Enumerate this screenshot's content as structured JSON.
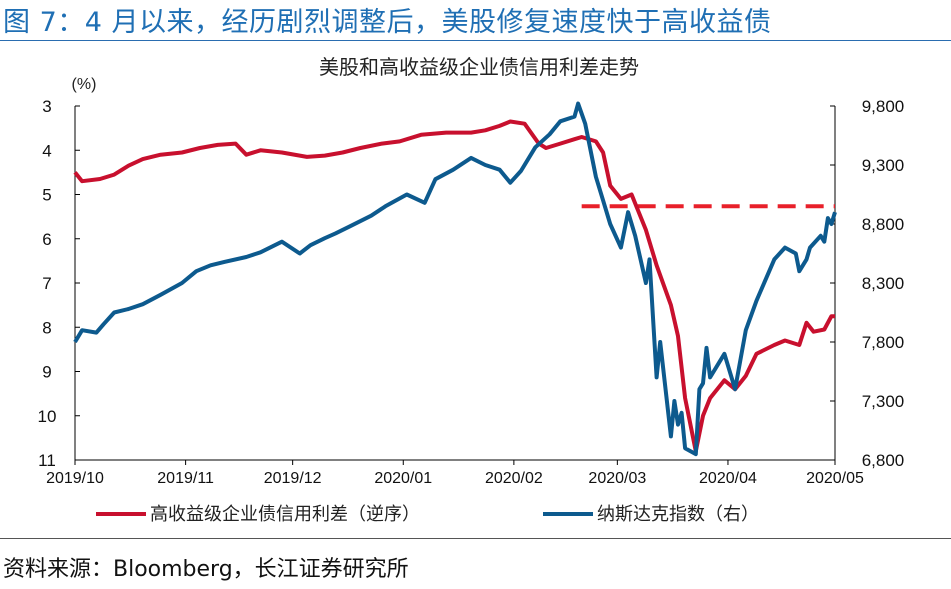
{
  "figure": {
    "title": "图 7：4 月以来，经历剧烈调整后，美股修复速度快于高收益债",
    "source": "资料来源：Bloomberg，长江证券研究所"
  },
  "colors": {
    "title_blue": "#1f6fb4",
    "spread_red": "#c8102e",
    "nasdaq_blue": "#0d5a8e",
    "dashed_red": "#e8202a"
  },
  "chart_data": {
    "type": "line",
    "title": "美股和高收益级企业债信用利差走势",
    "left_axis": {
      "unit_label": "(%)",
      "range": [
        3,
        11
      ],
      "inverted": true,
      "ticks": [
        3,
        4,
        5,
        6,
        7,
        8,
        9,
        10,
        11
      ]
    },
    "right_axis": {
      "range": [
        6800,
        9800
      ],
      "ticks": [
        6800,
        7300,
        7800,
        8300,
        8800,
        9300,
        9800
      ],
      "tick_labels": [
        "6,800",
        "7,300",
        "7,800",
        "8,300",
        "8,800",
        "9,300",
        "9,800"
      ]
    },
    "x_axis": {
      "start": "2019-10-01",
      "end": "2020-05-01",
      "ticks": [
        "2019-10-01",
        "2019-11-01",
        "2019-12-01",
        "2020-01-01",
        "2020-02-01",
        "2020-03-01",
        "2020-04-01",
        "2020-05-01"
      ],
      "tick_labels": [
        "2019/10",
        "2019/11",
        "2019/12",
        "2020/01",
        "2020/02",
        "2020/03",
        "2020/04",
        "2020/05"
      ]
    },
    "grid": false,
    "legend_position": "bottom",
    "series": [
      {
        "name": "高收益级企业债信用利差（逆序）",
        "axis": "left",
        "points": [
          [
            "2019-10-01",
            4.5
          ],
          [
            "2019-10-03",
            4.7
          ],
          [
            "2019-10-08",
            4.65
          ],
          [
            "2019-10-12",
            4.55
          ],
          [
            "2019-10-16",
            4.35
          ],
          [
            "2019-10-20",
            4.2
          ],
          [
            "2019-10-25",
            4.1
          ],
          [
            "2019-10-31",
            4.05
          ],
          [
            "2019-11-05",
            3.95
          ],
          [
            "2019-11-10",
            3.88
          ],
          [
            "2019-11-15",
            3.85
          ],
          [
            "2019-11-18",
            4.1
          ],
          [
            "2019-11-22",
            4.0
          ],
          [
            "2019-11-28",
            4.05
          ],
          [
            "2019-12-05",
            4.15
          ],
          [
            "2019-12-10",
            4.12
          ],
          [
            "2019-12-15",
            4.05
          ],
          [
            "2019-12-20",
            3.95
          ],
          [
            "2019-12-26",
            3.85
          ],
          [
            "2019-12-31",
            3.8
          ],
          [
            "2020-01-06",
            3.65
          ],
          [
            "2020-01-13",
            3.6
          ],
          [
            "2020-01-20",
            3.6
          ],
          [
            "2020-01-24",
            3.55
          ],
          [
            "2020-01-28",
            3.45
          ],
          [
            "2020-01-31",
            3.35
          ],
          [
            "2020-02-04",
            3.4
          ],
          [
            "2020-02-08",
            3.85
          ],
          [
            "2020-02-10",
            3.95
          ],
          [
            "2020-02-14",
            3.85
          ],
          [
            "2020-02-18",
            3.75
          ],
          [
            "2020-02-20",
            3.7
          ],
          [
            "2020-02-24",
            3.8
          ],
          [
            "2020-02-26",
            4.05
          ],
          [
            "2020-02-28",
            4.8
          ],
          [
            "2020-03-02",
            5.1
          ],
          [
            "2020-03-05",
            5.0
          ],
          [
            "2020-03-09",
            5.8
          ],
          [
            "2020-03-12",
            6.6
          ],
          [
            "2020-03-16",
            7.5
          ],
          [
            "2020-03-18",
            8.2
          ],
          [
            "2020-03-20",
            9.6
          ],
          [
            "2020-03-23",
            10.8
          ],
          [
            "2020-03-25",
            10.0
          ],
          [
            "2020-03-27",
            9.6
          ],
          [
            "2020-03-31",
            9.2
          ],
          [
            "2020-04-03",
            9.4
          ],
          [
            "2020-04-06",
            9.1
          ],
          [
            "2020-04-09",
            8.6
          ],
          [
            "2020-04-14",
            8.4
          ],
          [
            "2020-04-17",
            8.3
          ],
          [
            "2020-04-21",
            8.4
          ],
          [
            "2020-04-23",
            7.9
          ],
          [
            "2020-04-25",
            8.1
          ],
          [
            "2020-04-28",
            8.05
          ],
          [
            "2020-04-30",
            7.75
          ],
          [
            "2020-05-01",
            7.75
          ]
        ]
      },
      {
        "name": "纳斯达克指数（右）",
        "axis": "right",
        "points": [
          [
            "2019-10-01",
            7800
          ],
          [
            "2019-10-03",
            7900
          ],
          [
            "2019-10-07",
            7880
          ],
          [
            "2019-10-09",
            7950
          ],
          [
            "2019-10-12",
            8050
          ],
          [
            "2019-10-16",
            8080
          ],
          [
            "2019-10-20",
            8120
          ],
          [
            "2019-10-25",
            8200
          ],
          [
            "2019-10-31",
            8300
          ],
          [
            "2019-11-04",
            8400
          ],
          [
            "2019-11-08",
            8450
          ],
          [
            "2019-11-12",
            8480
          ],
          [
            "2019-11-18",
            8520
          ],
          [
            "2019-11-22",
            8560
          ],
          [
            "2019-11-28",
            8650
          ],
          [
            "2019-12-03",
            8550
          ],
          [
            "2019-12-06",
            8620
          ],
          [
            "2019-12-10",
            8680
          ],
          [
            "2019-12-13",
            8720
          ],
          [
            "2019-12-17",
            8780
          ],
          [
            "2019-12-23",
            8870
          ],
          [
            "2019-12-27",
            8950
          ],
          [
            "2020-01-02",
            9050
          ],
          [
            "2020-01-07",
            8980
          ],
          [
            "2020-01-10",
            9180
          ],
          [
            "2020-01-15",
            9260
          ],
          [
            "2020-01-20",
            9360
          ],
          [
            "2020-01-24",
            9300
          ],
          [
            "2020-01-28",
            9260
          ],
          [
            "2020-01-31",
            9150
          ],
          [
            "2020-02-03",
            9250
          ],
          [
            "2020-02-07",
            9450
          ],
          [
            "2020-02-11",
            9560
          ],
          [
            "2020-02-14",
            9670
          ],
          [
            "2020-02-18",
            9710
          ],
          [
            "2020-02-19",
            9820
          ],
          [
            "2020-02-21",
            9650
          ],
          [
            "2020-02-24",
            9200
          ],
          [
            "2020-02-26",
            9000
          ],
          [
            "2020-02-28",
            8800
          ],
          [
            "2020-03-02",
            8600
          ],
          [
            "2020-03-04",
            8900
          ],
          [
            "2020-03-06",
            8700
          ],
          [
            "2020-03-09",
            8300
          ],
          [
            "2020-03-10",
            8500
          ],
          [
            "2020-03-12",
            7500
          ],
          [
            "2020-03-13",
            7800
          ],
          [
            "2020-03-16",
            7000
          ],
          [
            "2020-03-17",
            7300
          ],
          [
            "2020-03-18",
            7100
          ],
          [
            "2020-03-19",
            7200
          ],
          [
            "2020-03-20",
            6900
          ],
          [
            "2020-03-23",
            6850
          ],
          [
            "2020-03-24",
            7400
          ],
          [
            "2020-03-25",
            7450
          ],
          [
            "2020-03-26",
            7750
          ],
          [
            "2020-03-27",
            7500
          ],
          [
            "2020-03-31",
            7700
          ],
          [
            "2020-04-03",
            7400
          ],
          [
            "2020-04-06",
            7900
          ],
          [
            "2020-04-09",
            8150
          ],
          [
            "2020-04-14",
            8500
          ],
          [
            "2020-04-17",
            8600
          ],
          [
            "2020-04-20",
            8550
          ],
          [
            "2020-04-21",
            8400
          ],
          [
            "2020-04-23",
            8500
          ],
          [
            "2020-04-24",
            8600
          ],
          [
            "2020-04-27",
            8700
          ],
          [
            "2020-04-28",
            8650
          ],
          [
            "2020-04-29",
            8850
          ],
          [
            "2020-04-30",
            8800
          ],
          [
            "2020-05-01",
            8900
          ]
        ]
      }
    ],
    "reference_line": {
      "axis": "right",
      "value": 8950,
      "from": "2020-02-20",
      "to": "2020-05-01",
      "style": "dashed"
    }
  }
}
